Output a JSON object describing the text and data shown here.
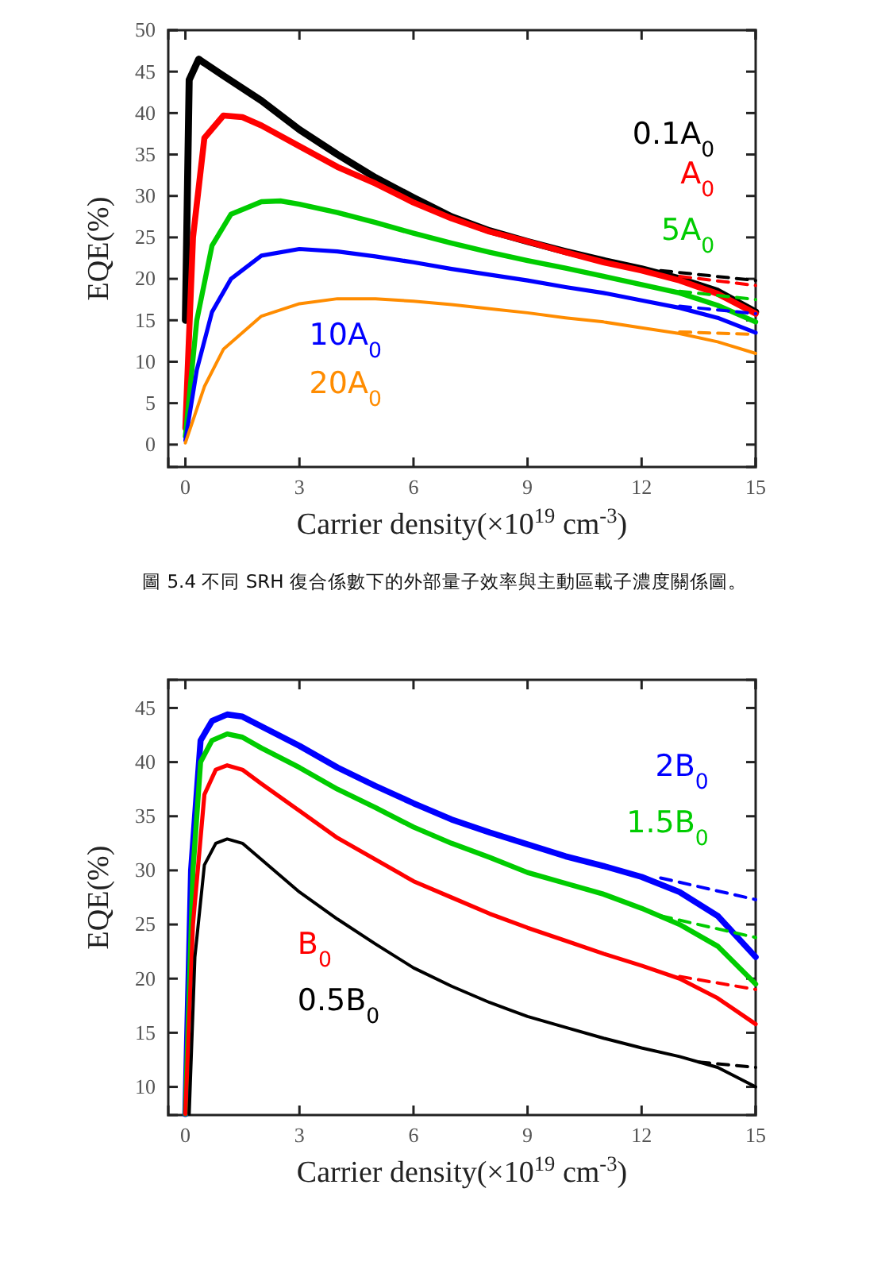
{
  "chart_data": [
    {
      "type": "line",
      "xlabel": "Carrier density(×10$^{19}$ cm$^{-3}$)",
      "ylabel": "EQE(%)",
      "xlim": [
        -0.45,
        15
      ],
      "ylim": [
        -2.7,
        50
      ],
      "xticks": [
        0,
        3,
        6,
        9,
        12,
        15
      ],
      "yticks": [
        0,
        5,
        10,
        15,
        20,
        25,
        30,
        35,
        40,
        45,
        50
      ],
      "line_style": "solid",
      "marker": "none",
      "annotations": [
        "圖 5.4 不同 SRH 復合係數下的外部量子效率與主動區載子濃度關係圖。"
      ],
      "series": [
        {
          "name": "0.1A$_{0}$",
          "color": "#000000",
          "x": [
            0,
            0.1,
            0.35,
            1,
            2,
            3,
            4,
            5,
            6,
            7,
            8,
            9,
            10,
            11,
            12,
            13,
            14,
            15
          ],
          "values": [
            15,
            44,
            46.5,
            44.5,
            41.5,
            38,
            35,
            32.2,
            29.8,
            27.5,
            25.8,
            24.5,
            23.3,
            22.2,
            21.2,
            20,
            18.5,
            16
          ]
        },
        {
          "name": "A$_{0}$",
          "color": "#ff0000",
          "x": [
            0,
            0.2,
            0.5,
            1,
            1.5,
            2,
            3,
            4,
            5,
            6,
            7,
            8,
            9,
            10,
            11,
            12,
            13,
            14,
            15
          ],
          "values": [
            2,
            25,
            37,
            39.7,
            39.5,
            38.5,
            36,
            33.5,
            31.5,
            29.2,
            27.3,
            25.7,
            24.5,
            23.2,
            22,
            21,
            19.8,
            18.2,
            15.8
          ]
        },
        {
          "name": "5A$_{0}$",
          "color": "#00cc00",
          "x": [
            0,
            0.3,
            0.7,
            1.2,
            2,
            2.5,
            3,
            4,
            5,
            6,
            7,
            8,
            9,
            10,
            11,
            12,
            13,
            14,
            15
          ],
          "values": [
            1,
            15,
            24,
            27.8,
            29.3,
            29.4,
            29,
            28,
            26.8,
            25.5,
            24.3,
            23.2,
            22.2,
            21.3,
            20.3,
            19.3,
            18.3,
            16.8,
            14.8
          ]
        },
        {
          "name": "10A$_{0}$",
          "color": "#0000ff",
          "x": [
            0,
            0.3,
            0.7,
            1.2,
            2,
            3,
            4,
            5,
            6,
            7,
            8,
            9,
            10,
            11,
            12,
            13,
            14,
            15
          ],
          "values": [
            0.5,
            9,
            16,
            20,
            22.8,
            23.6,
            23.3,
            22.7,
            22,
            21.2,
            20.5,
            19.8,
            19,
            18.3,
            17.4,
            16.5,
            15.3,
            13.5
          ]
        },
        {
          "name": "20A$_{0}$",
          "color": "#ff8c00",
          "x": [
            0,
            0.5,
            1,
            2,
            3,
            4,
            5,
            6,
            7,
            8,
            9,
            10,
            11,
            12,
            13,
            14,
            15
          ],
          "values": [
            0.2,
            7,
            11.5,
            15.5,
            17,
            17.6,
            17.6,
            17.3,
            16.9,
            16.4,
            15.9,
            15.3,
            14.8,
            14.1,
            13.4,
            12.4,
            11
          ]
        },
        {
          "color": "#000000",
          "line_style": "dashed",
          "x": [
            12.5,
            15
          ],
          "values": [
            21,
            19.8
          ]
        },
        {
          "color": "#ff0000",
          "line_style": "dashed",
          "x": [
            13,
            15
          ],
          "values": [
            20.3,
            19.2
          ]
        },
        {
          "color": "#00cc00",
          "line_style": "dashed",
          "x": [
            13,
            15
          ],
          "values": [
            18.5,
            17.5
          ]
        },
        {
          "color": "#0000ff",
          "line_style": "dashed",
          "x": [
            13,
            15
          ],
          "values": [
            16.7,
            15.8
          ]
        },
        {
          "color": "#ff8c00",
          "line_style": "dashed",
          "x": [
            13,
            15
          ],
          "values": [
            13.6,
            13.3
          ]
        }
      ]
    },
    {
      "type": "line",
      "xlabel": "Carrier density(×10$^{19}$ cm$^{-3}$)",
      "ylabel": "EQE(%)",
      "xlim": [
        -0.45,
        15
      ],
      "ylim": [
        7.4,
        47.6
      ],
      "xticks": [
        0,
        3,
        6,
        9,
        12,
        15
      ],
      "yticks": [
        10,
        15,
        20,
        25,
        30,
        35,
        40,
        45
      ],
      "line_style": "solid",
      "marker": "none",
      "series": [
        {
          "name": "2B$_{0}$",
          "color": "#0000ff",
          "x": [
            0,
            0.15,
            0.4,
            0.7,
            1.1,
            1.5,
            2,
            3,
            4,
            5,
            6,
            7,
            8,
            9,
            10,
            11,
            12,
            13,
            14,
            15
          ],
          "values": [
            7.5,
            30,
            42,
            43.8,
            44.4,
            44.2,
            43.3,
            41.5,
            39.5,
            37.8,
            36.2,
            34.7,
            33.5,
            32.4,
            31.3,
            30.4,
            29.4,
            28,
            25.8,
            22
          ]
        },
        {
          "name": "1.5B$_{0}$",
          "color": "#00cc00",
          "x": [
            0,
            0.2,
            0.4,
            0.7,
            1.1,
            1.5,
            2,
            3,
            4,
            5,
            6,
            7,
            8,
            9,
            10,
            11,
            12,
            13,
            14,
            15
          ],
          "values": [
            7.5,
            30,
            40,
            42,
            42.6,
            42.3,
            41.3,
            39.5,
            37.5,
            35.8,
            34,
            32.5,
            31.2,
            29.8,
            28.8,
            27.8,
            26.5,
            25,
            23,
            19.5
          ]
        },
        {
          "name": "B$_{0}$",
          "color": "#ff0000",
          "x": [
            0,
            0.2,
            0.5,
            0.8,
            1.1,
            1.5,
            2,
            3,
            4,
            5,
            6,
            7,
            8,
            9,
            10,
            11,
            12,
            13,
            14,
            15
          ],
          "values": [
            7.5,
            25,
            37,
            39.3,
            39.7,
            39.3,
            38,
            35.5,
            33,
            31,
            29,
            27.5,
            26,
            24.7,
            23.5,
            22.3,
            21.2,
            20,
            18.2,
            15.8
          ]
        },
        {
          "name": "0.5B$_{0}$",
          "color": "#000000",
          "x": [
            0.1,
            0.25,
            0.5,
            0.8,
            1.1,
            1.5,
            2,
            3,
            4,
            5,
            6,
            7,
            8,
            9,
            10,
            11,
            12,
            13,
            14,
            15
          ],
          "values": [
            7.5,
            22,
            30.5,
            32.5,
            32.9,
            32.5,
            31,
            28,
            25.5,
            23.2,
            21,
            19.3,
            17.8,
            16.5,
            15.5,
            14.5,
            13.6,
            12.8,
            11.8,
            10
          ]
        },
        {
          "color": "#0000ff",
          "line_style": "dashed",
          "x": [
            12.5,
            15
          ],
          "values": [
            29.3,
            27.3
          ]
        },
        {
          "color": "#00cc00",
          "line_style": "dashed",
          "x": [
            12.5,
            15
          ],
          "values": [
            25.8,
            23.8
          ]
        },
        {
          "color": "#ff0000",
          "line_style": "dashed",
          "x": [
            13,
            15
          ],
          "values": [
            20.2,
            19
          ]
        },
        {
          "color": "#000000",
          "line_style": "dashed",
          "x": [
            13.5,
            15
          ],
          "values": [
            12.3,
            11.8
          ]
        }
      ]
    }
  ]
}
